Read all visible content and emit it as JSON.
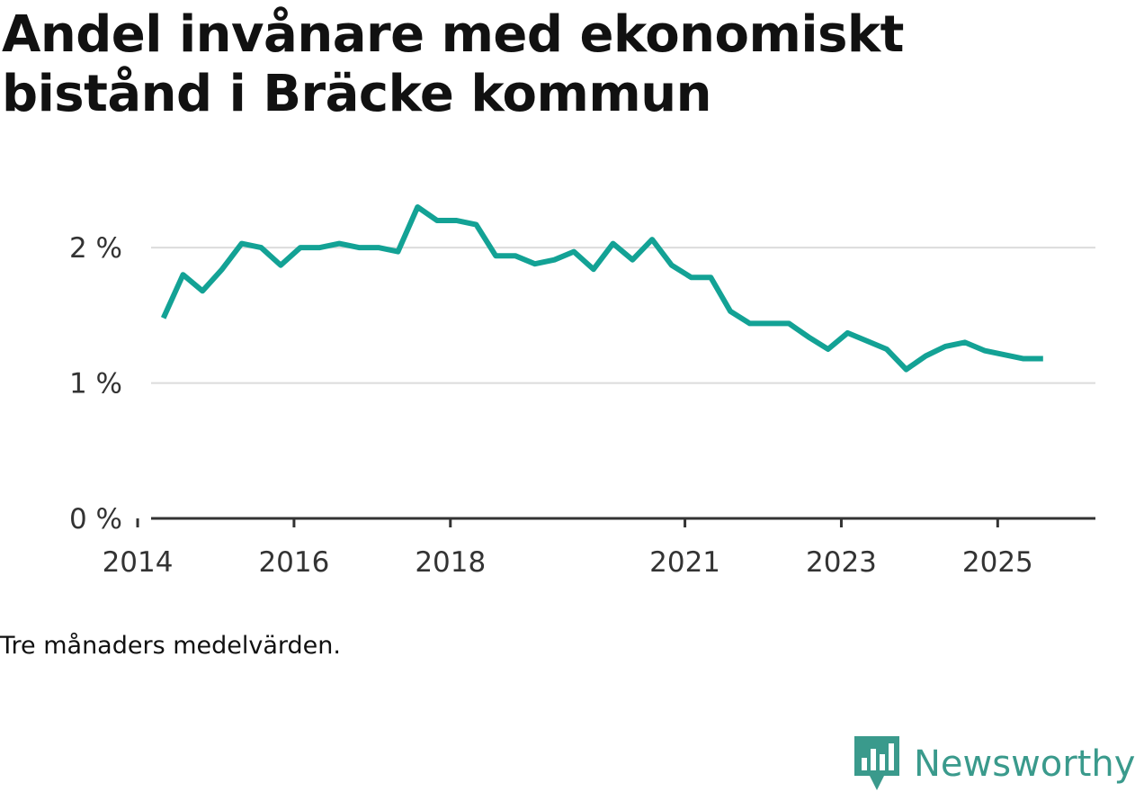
{
  "title": "Andel invånare med ekonomiskt bistånd i Bräcke kommun",
  "caption": "Tre månaders medelvärden.",
  "brand": {
    "name": "Newsworthy",
    "icon": "newsworthy-logo-icon",
    "color": "#3a9a8c"
  },
  "chart_data": {
    "type": "line",
    "title": "Andel invånare med ekonomiskt bistånd i Bräcke kommun",
    "xlabel": "",
    "ylabel": "",
    "xlim": [
      2013.85,
      2026.25
    ],
    "ylim": [
      0,
      2.3
    ],
    "x_ticks": [
      {
        "value": 2014,
        "label": "2014"
      },
      {
        "value": 2016,
        "label": "2016"
      },
      {
        "value": 2018,
        "label": "2018"
      },
      {
        "value": 2021,
        "label": "2021"
      },
      {
        "value": 2023,
        "label": "2023"
      },
      {
        "value": 2025,
        "label": "2025"
      }
    ],
    "y_ticks": [
      {
        "value": 0,
        "label": "0 %"
      },
      {
        "value": 1,
        "label": "1 %"
      },
      {
        "value": 2,
        "label": "2 %"
      }
    ],
    "grid": true,
    "line_color": "#13a295",
    "series": [
      {
        "name": "Andel invånare med ekonomiskt bistånd",
        "x": [
          2014.33,
          2014.58,
          2014.83,
          2015.08,
          2015.33,
          2015.58,
          2015.83,
          2016.08,
          2016.33,
          2016.58,
          2016.83,
          2017.08,
          2017.33,
          2017.58,
          2017.83,
          2018.08,
          2018.33,
          2018.58,
          2018.83,
          2019.08,
          2019.33,
          2019.58,
          2019.83,
          2020.08,
          2020.33,
          2020.58,
          2020.83,
          2021.08,
          2021.33,
          2021.58,
          2021.83,
          2022.08,
          2022.33,
          2022.58,
          2022.83,
          2023.08,
          2023.33,
          2023.58,
          2023.83,
          2024.08,
          2024.33,
          2024.58,
          2024.83,
          2025.08,
          2025.33,
          2025.58
        ],
        "values": [
          1.48,
          1.8,
          1.68,
          1.84,
          2.03,
          2.0,
          1.87,
          2.0,
          2.0,
          2.03,
          2.0,
          2.0,
          1.97,
          2.3,
          2.2,
          2.2,
          2.17,
          1.94,
          1.94,
          1.88,
          1.91,
          1.97,
          1.84,
          2.03,
          1.91,
          2.06,
          1.87,
          1.78,
          1.78,
          1.53,
          1.44,
          1.44,
          1.44,
          1.34,
          1.25,
          1.37,
          1.31,
          1.25,
          1.1,
          1.2,
          1.27,
          1.3,
          1.24,
          1.21,
          1.18,
          1.18
        ]
      }
    ]
  }
}
